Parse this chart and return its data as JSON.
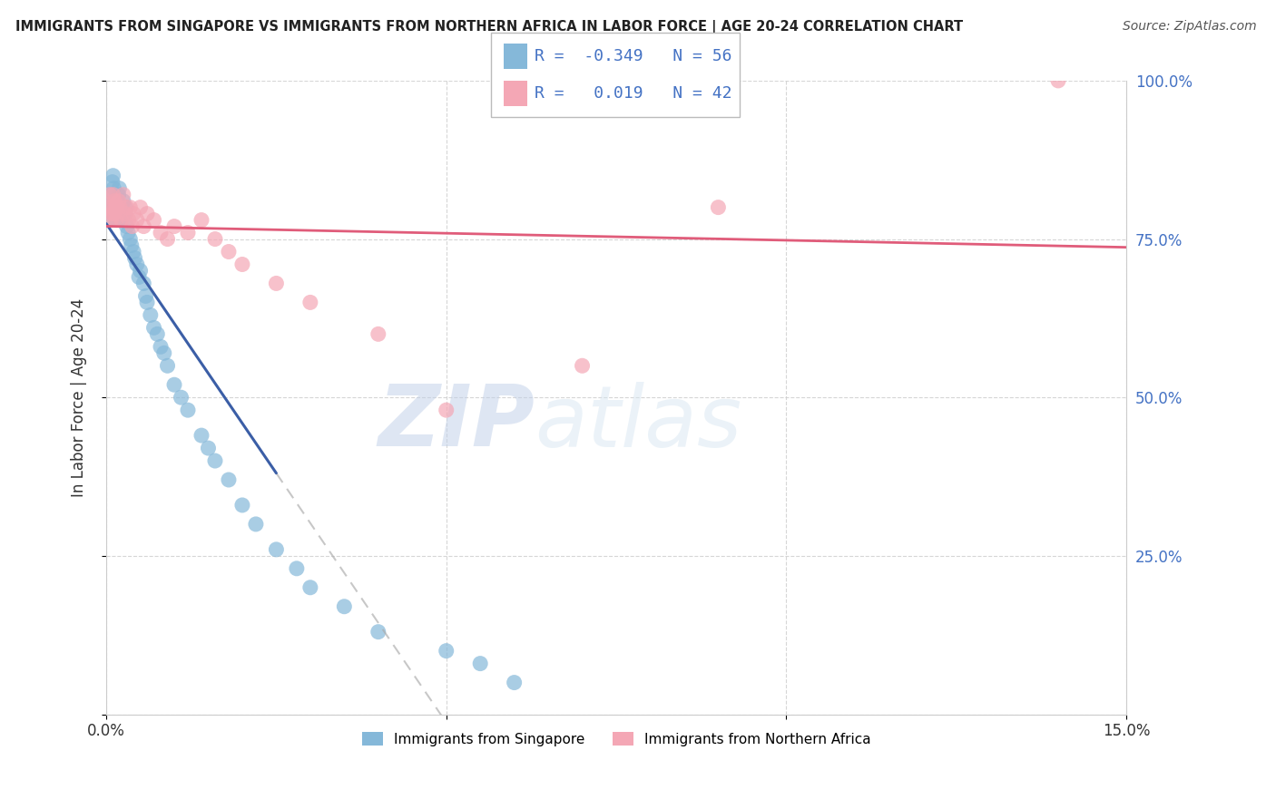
{
  "title": "IMMIGRANTS FROM SINGAPORE VS IMMIGRANTS FROM NORTHERN AFRICA IN LABOR FORCE | AGE 20-24 CORRELATION CHART",
  "source": "Source: ZipAtlas.com",
  "ylabel": "In Labor Force | Age 20-24",
  "xlim": [
    0.0,
    15.0
  ],
  "ylim": [
    0.0,
    100.0
  ],
  "yticks": [
    0.0,
    25.0,
    50.0,
    75.0,
    100.0
  ],
  "ytick_labels": [
    "",
    "25.0%",
    "50.0%",
    "75.0%",
    "100.0%"
  ],
  "xticks": [
    0.0,
    5.0,
    10.0,
    15.0
  ],
  "xtick_labels": [
    "0.0%",
    "",
    "",
    "15.0%"
  ],
  "singapore_R": -0.349,
  "singapore_N": 56,
  "northern_africa_R": 0.019,
  "northern_africa_N": 42,
  "singapore_color": "#85B8D9",
  "northern_africa_color": "#F4A7B5",
  "singapore_line_color": "#3B5EA6",
  "northern_africa_line_color": "#E05C7A",
  "right_tick_color": "#4472C4",
  "watermark_zip": "ZIP",
  "watermark_atlas": "atlas",
  "sg_x": [
    0.05,
    0.07,
    0.08,
    0.09,
    0.1,
    0.11,
    0.12,
    0.13,
    0.14,
    0.15,
    0.16,
    0.17,
    0.18,
    0.19,
    0.2,
    0.21,
    0.22,
    0.23,
    0.25,
    0.27,
    0.28,
    0.3,
    0.32,
    0.35,
    0.37,
    0.4,
    0.42,
    0.45,
    0.48,
    0.5,
    0.55,
    0.58,
    0.6,
    0.65,
    0.7,
    0.75,
    0.8,
    0.85,
    0.9,
    1.0,
    1.1,
    1.2,
    1.4,
    1.5,
    1.6,
    1.8,
    2.0,
    2.2,
    2.5,
    2.8,
    3.0,
    3.5,
    4.0,
    5.0,
    5.5,
    6.0
  ],
  "sg_y": [
    78,
    80,
    82,
    84,
    85,
    83,
    80,
    81,
    79,
    78,
    80,
    79,
    82,
    83,
    80,
    78,
    79,
    80,
    81,
    79,
    80,
    77,
    76,
    75,
    74,
    73,
    72,
    71,
    69,
    70,
    68,
    66,
    65,
    63,
    61,
    60,
    58,
    57,
    55,
    52,
    50,
    48,
    44,
    42,
    40,
    37,
    33,
    30,
    26,
    23,
    20,
    17,
    13,
    10,
    8,
    5
  ],
  "na_x": [
    0.05,
    0.06,
    0.07,
    0.08,
    0.09,
    0.1,
    0.11,
    0.12,
    0.13,
    0.14,
    0.15,
    0.17,
    0.18,
    0.2,
    0.22,
    0.25,
    0.28,
    0.3,
    0.33,
    0.35,
    0.38,
    0.4,
    0.45,
    0.5,
    0.55,
    0.6,
    0.7,
    0.8,
    0.9,
    1.0,
    1.2,
    1.4,
    1.6,
    1.8,
    2.0,
    2.5,
    3.0,
    4.0,
    5.0,
    7.0,
    9.0,
    14.0
  ],
  "na_y": [
    82,
    80,
    78,
    79,
    80,
    82,
    79,
    81,
    80,
    78,
    80,
    79,
    81,
    80,
    78,
    82,
    79,
    80,
    78,
    80,
    77,
    79,
    78,
    80,
    77,
    79,
    78,
    76,
    75,
    77,
    76,
    78,
    75,
    73,
    71,
    68,
    65,
    60,
    48,
    55,
    80,
    100
  ],
  "sg_line_x_solid_start": 0.0,
  "sg_line_x_solid_end": 2.5,
  "sg_line_x_dash_end": 15.0,
  "na_line_x_start": 0.0,
  "na_line_x_end": 15.0
}
